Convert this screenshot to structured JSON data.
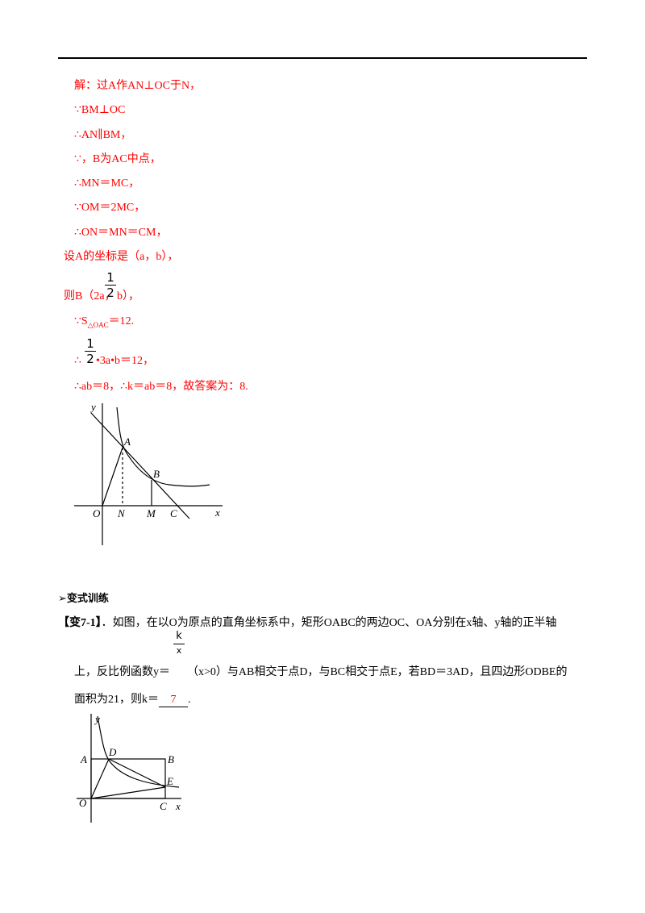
{
  "solution": {
    "lines": [
      "解：过A作AN⊥OC于N，",
      "∵BM⊥OC",
      "∴AN∥BM，",
      "∵，B为AC中点，",
      "∴MN＝MC，",
      "∵OM＝2MC，",
      "∴ON＝MN＝CM，",
      "设A的坐标是（a，b），"
    ],
    "line_b": {
      "before": "则B（2a，",
      "num": "1",
      "den": "2",
      "after": "b），"
    },
    "line_s": {
      "text": "∵S",
      "sub": "△OAC",
      "after": "＝12."
    },
    "line_f": {
      "before": "∴",
      "num": "1",
      "den": "2",
      "after": "•3a•b＝12，"
    },
    "line_end": "∴ab＝8，∴k＝ab＝8，故答案为：8."
  },
  "figure1": {
    "labels": {
      "y": "y",
      "A": "A",
      "B": "B",
      "O": "O",
      "N": "N",
      "M": "M",
      "C": "C",
      "x": "x"
    }
  },
  "section": "➢变式训练",
  "problem": {
    "tag": "【变7-1】",
    "text1": "．如图，在以O为原点的直角坐标系中，矩形OABC的两边OC、OA分别在x轴、y轴的正半轴",
    "text2_before": "上，反比例函数y＝",
    "frac_num": "k",
    "frac_den": "x",
    "text2_after": "（x>0）与AB相交于点D，与BC相交于点E，若BD＝3AD，且四边形ODBE的",
    "text3_before": "面积为21，则k＝",
    "answer": "7",
    "text3_after": "."
  },
  "figure2": {
    "labels": {
      "y": "y",
      "A": "A",
      "D": "D",
      "B": "B",
      "E": "E",
      "O": "O",
      "C": "C",
      "x": "x"
    }
  }
}
